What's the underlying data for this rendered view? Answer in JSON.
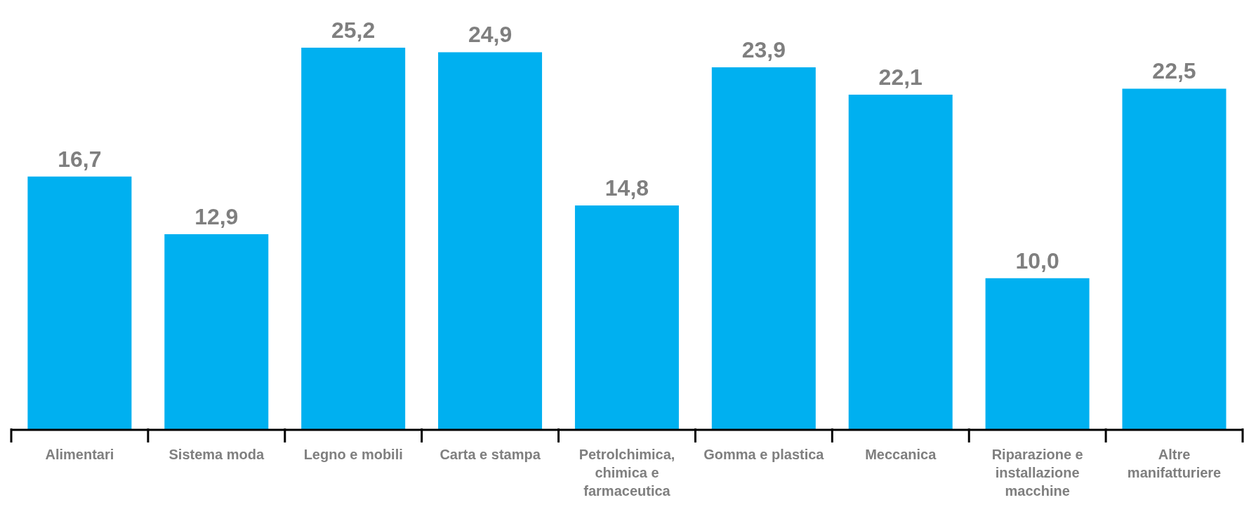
{
  "chart_data": {
    "type": "bar",
    "categories": [
      "Alimentari",
      "Sistema moda",
      "Legno e mobili",
      "Carta e stampa",
      "Petrolchimica, chimica e farmaceutica",
      "Gomma e plastica",
      "Meccanica",
      "Riparazione e installazione macchine",
      "Altre manifatturiere"
    ],
    "values": [
      16.7,
      12.9,
      25.2,
      24.9,
      14.8,
      23.9,
      22.1,
      10.0,
      22.5
    ],
    "color": "#00b0f0",
    "value_labels": [
      "16,7",
      "12,9",
      "25,2",
      "24,9",
      "14,8",
      "23,9",
      "22,1",
      "10,0",
      "22,5"
    ],
    "grid": false,
    "legend": false
  }
}
